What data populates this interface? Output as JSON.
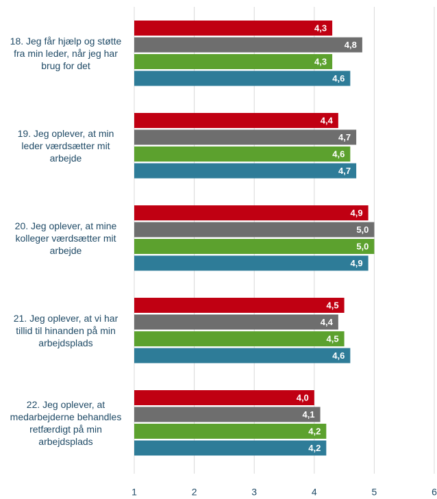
{
  "chart_data": {
    "type": "bar",
    "orientation": "horizontal",
    "categories": [
      "18. Jeg får hjælp og støtte fra min leder, når jeg har brug for det",
      "19. Jeg oplever, at min leder værdsætter mit arbejde",
      "20. Jeg oplever, at mine kolleger værdsætter mit arbejde",
      "21. Jeg oplever, at vi har tillid til hinanden på min arbejdsplads",
      "22. Jeg oplever, at medarbejderne behandles retfærdigt på min arbejdsplads"
    ],
    "series": [
      {
        "color": "#c00012",
        "values": [
          4.3,
          4.4,
          4.9,
          4.5,
          4.0
        ],
        "value_labels": [
          "4,3",
          "4,4",
          "4,9",
          "4,5",
          "4,0"
        ]
      },
      {
        "color": "#6e6e6e",
        "values": [
          4.8,
          4.7,
          5.0,
          4.4,
          4.1
        ],
        "value_labels": [
          "4,8",
          "4,7",
          "5,0",
          "4,4",
          "4,1"
        ]
      },
      {
        "color": "#5ca12e",
        "values": [
          4.3,
          4.6,
          5.0,
          4.5,
          4.2
        ],
        "value_labels": [
          "4,3",
          "4,6",
          "5,0",
          "4,5",
          "4,2"
        ]
      },
      {
        "color": "#2e7c98",
        "values": [
          4.6,
          4.7,
          4.9,
          4.6,
          4.2
        ],
        "value_labels": [
          "4,6",
          "4,7",
          "4,9",
          "4,6",
          "4,2"
        ]
      }
    ],
    "xlim": [
      1,
      6
    ],
    "xticks": [
      1,
      2,
      3,
      4,
      5,
      6
    ],
    "grid": true
  }
}
